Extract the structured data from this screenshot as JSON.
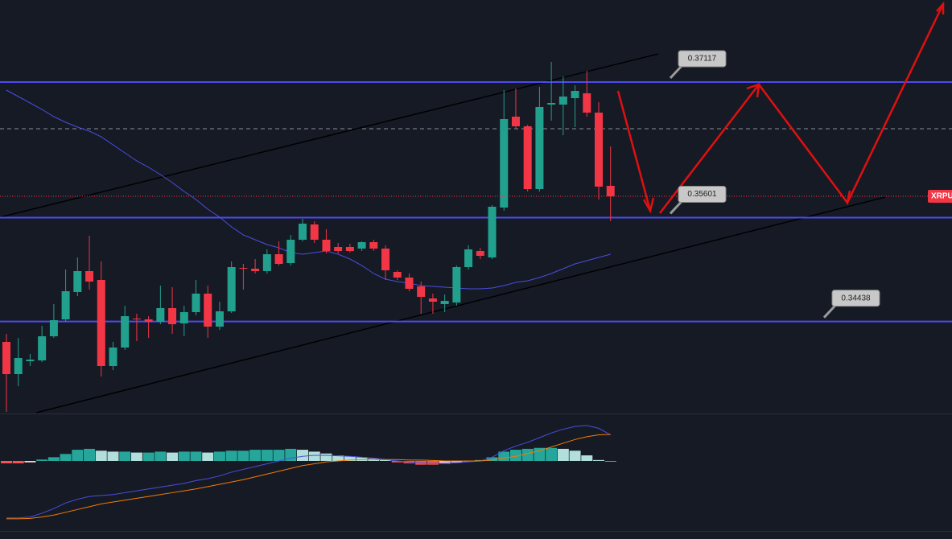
{
  "chart_data": [
    {
      "type": "candlestick",
      "symbol": "XRPU",
      "ylim": [
        0.334,
        0.38035
      ],
      "up_color": "#22a08e",
      "down_color": "#f23645",
      "open": [
        0.3421,
        0.3385,
        0.33994,
        0.34003,
        0.34273,
        0.34462,
        0.34768,
        0.35002,
        0.34903,
        0.3394,
        0.34147,
        0.34471,
        0.34462,
        0.34435,
        0.34588,
        0.34417,
        0.34543,
        0.3475,
        0.34381,
        0.34552,
        0.35038,
        0.35029,
        0.35002,
        0.35191,
        0.35092,
        0.35353,
        0.35524,
        0.35353,
        0.35272,
        0.35272,
        0.35254,
        0.35326,
        0.35254,
        0.34993,
        0.3493,
        0.34831,
        0.34696,
        0.34633,
        0.34651,
        0.35047,
        0.35227,
        0.35155,
        0.35713,
        0.3673,
        0.36622,
        0.3592,
        0.36865,
        0.36865,
        0.36937,
        0.36991,
        0.36775,
        0.35956
      ],
      "high": [
        0.343,
        0.34255,
        0.34075,
        0.3439,
        0.34633,
        0.3502,
        0.35155,
        0.35398,
        0.3511,
        0.3421,
        0.34615,
        0.34525,
        0.34498,
        0.3484,
        0.34822,
        0.34615,
        0.34903,
        0.3484,
        0.3466,
        0.3511,
        0.35083,
        0.35137,
        0.35245,
        0.35335,
        0.35407,
        0.35587,
        0.3556,
        0.3547,
        0.35317,
        0.35308,
        0.35335,
        0.35353,
        0.3529,
        0.35011,
        0.34975,
        0.34885,
        0.3475,
        0.34741,
        0.35065,
        0.3529,
        0.35263,
        0.3574,
        0.37027,
        0.37045,
        0.3664,
        0.37063,
        0.37342,
        0.3718,
        0.37081,
        0.37243,
        0.36892,
        0.36397
      ],
      "low": [
        0.33427,
        0.33715,
        0.3394,
        0.33985,
        0.34255,
        0.34435,
        0.34723,
        0.34795,
        0.33823,
        0.33895,
        0.3412,
        0.34219,
        0.34255,
        0.34408,
        0.343,
        0.34273,
        0.34507,
        0.34255,
        0.34345,
        0.34534,
        0.34795,
        0.34975,
        0.34975,
        0.35065,
        0.35065,
        0.35335,
        0.35317,
        0.352,
        0.352,
        0.35209,
        0.35227,
        0.35227,
        0.34903,
        0.34903,
        0.34777,
        0.34525,
        0.34525,
        0.34543,
        0.34615,
        0.3502,
        0.35137,
        0.35137,
        0.35677,
        0.36595,
        0.35893,
        0.35893,
        0.36685,
        0.36523,
        0.36613,
        0.3673,
        0.35803,
        0.3556
      ],
      "close": [
        0.3385,
        0.3403,
        0.34012,
        0.34273,
        0.34453,
        0.34777,
        0.35002,
        0.34885,
        0.3394,
        0.34147,
        0.34498,
        0.34462,
        0.34435,
        0.34588,
        0.34408,
        0.34543,
        0.3475,
        0.34381,
        0.34552,
        0.35047,
        0.35029,
        0.35002,
        0.35191,
        0.35083,
        0.35353,
        0.35533,
        0.35353,
        0.35227,
        0.35227,
        0.35227,
        0.35326,
        0.35254,
        0.35011,
        0.3493,
        0.34804,
        0.34714,
        0.3466,
        0.34669,
        0.35047,
        0.35245,
        0.35173,
        0.35722,
        0.36703,
        0.36622,
        0.3592,
        0.36838,
        0.36883,
        0.36955,
        0.37018,
        0.36775,
        0.35947,
        0.35839
      ],
      "moving_average": {
        "color": "#4a4ee0",
        "values": [
          0.37027,
          0.36955,
          0.36883,
          0.36811,
          0.3673,
          0.36667,
          0.36613,
          0.36568,
          0.36505,
          0.36415,
          0.36325,
          0.36235,
          0.36163,
          0.36082,
          0.35992,
          0.35893,
          0.35803,
          0.35695,
          0.35605,
          0.35497,
          0.35407,
          0.35353,
          0.35299,
          0.35263,
          0.35209,
          0.35191,
          0.35209,
          0.35227,
          0.35191,
          0.35137,
          0.35065,
          0.34975,
          0.34912,
          0.34885,
          0.34867,
          0.3484,
          0.34831,
          0.34822,
          0.34813,
          0.34804,
          0.34804,
          0.34813,
          0.3484,
          0.34876,
          0.34894,
          0.3493,
          0.34975,
          0.35029,
          0.35083,
          0.35119,
          0.35155,
          0.35191
        ]
      },
      "levels": [
        0.37117,
        0.35601,
        0.34438
      ],
      "level_color": "#4b4bf0"
    },
    {
      "type": "macd",
      "ylim": [
        -1.5,
        1
      ],
      "histogram": {
        "colors": [
          "#26a69a",
          "#b2dfdb",
          "#ff5252",
          "#ffcdd2"
        ],
        "values": [
          -0.05,
          -0.05,
          -0.03,
          0.03,
          0.08,
          0.15,
          0.24,
          0.26,
          0.22,
          0.2,
          0.2,
          0.18,
          0.18,
          0.2,
          0.18,
          0.2,
          0.2,
          0.18,
          0.2,
          0.22,
          0.22,
          0.24,
          0.24,
          0.24,
          0.26,
          0.24,
          0.2,
          0.16,
          0.12,
          0.1,
          0.08,
          0.05,
          0.02,
          -0.03,
          -0.05,
          -0.08,
          -0.08,
          -0.06,
          -0.03,
          0.0,
          0.02,
          0.08,
          0.2,
          0.24,
          0.26,
          0.28,
          0.28,
          0.26,
          0.22,
          0.12,
          0.02,
          -0.01
        ]
      },
      "macd_line": {
        "color": "#4a4ee0",
        "values": [
          -1.22,
          -1.22,
          -1.2,
          -1.12,
          -1.02,
          -0.9,
          -0.82,
          -0.76,
          -0.74,
          -0.72,
          -0.68,
          -0.64,
          -0.6,
          -0.56,
          -0.52,
          -0.48,
          -0.42,
          -0.38,
          -0.32,
          -0.24,
          -0.18,
          -0.12,
          -0.06,
          0.0,
          0.06,
          0.1,
          0.12,
          0.12,
          0.11,
          0.1,
          0.08,
          0.06,
          0.03,
          0.0,
          -0.02,
          -0.04,
          -0.05,
          -0.05,
          -0.04,
          -0.02,
          0.0,
          0.08,
          0.22,
          0.32,
          0.4,
          0.5,
          0.6,
          0.68,
          0.74,
          0.76,
          0.7,
          0.56
        ]
      },
      "signal_line": {
        "color": "#f57c00",
        "values": [
          -1.24,
          -1.24,
          -1.23,
          -1.2,
          -1.16,
          -1.1,
          -1.04,
          -0.98,
          -0.92,
          -0.88,
          -0.84,
          -0.8,
          -0.76,
          -0.72,
          -0.68,
          -0.64,
          -0.6,
          -0.55,
          -0.5,
          -0.45,
          -0.4,
          -0.34,
          -0.28,
          -0.22,
          -0.16,
          -0.1,
          -0.06,
          -0.02,
          0.0,
          0.02,
          0.03,
          0.03,
          0.03,
          0.03,
          0.02,
          0.02,
          0.01,
          0.0,
          0.0,
          0.0,
          0.0,
          0.02,
          0.06,
          0.1,
          0.16,
          0.22,
          0.3,
          0.38,
          0.46,
          0.52,
          0.56,
          0.57
        ]
      }
    }
  ]
}
